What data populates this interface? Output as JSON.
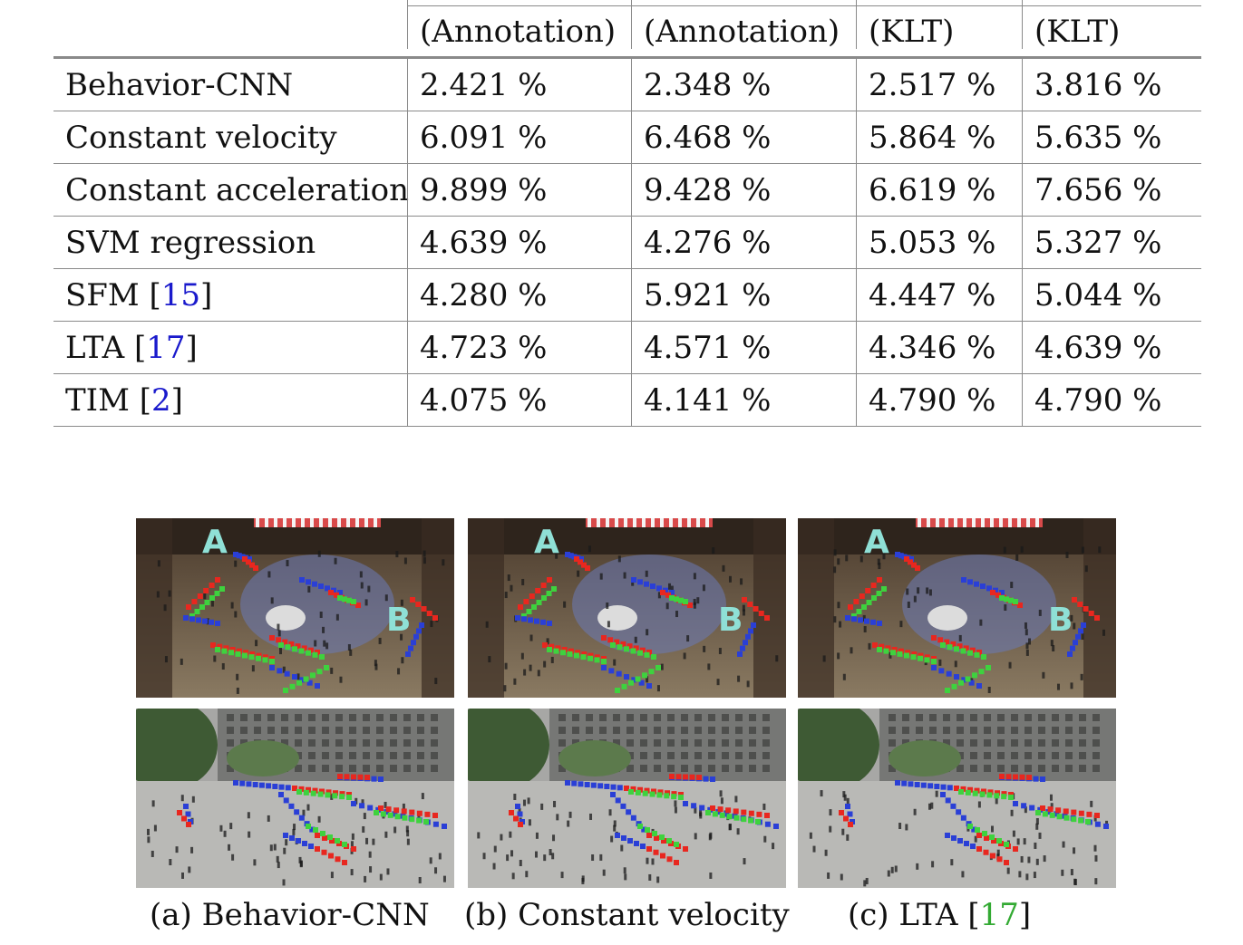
{
  "table": {
    "header": [
      "",
      "(Annotation)",
      "(Annotation)",
      "(KLT)",
      "(KLT)"
    ],
    "rows": [
      {
        "method": "Behavior-CNN",
        "ref": "",
        "values": [
          "2.421 %",
          "2.348 %",
          "2.517 %",
          "3.816 %"
        ]
      },
      {
        "method": "Constant velocity",
        "ref": "",
        "values": [
          "6.091 %",
          "6.468 %",
          "5.864 %",
          "5.635 %"
        ]
      },
      {
        "method": "Constant acceleration",
        "ref": "",
        "values": [
          "9.899 %",
          "9.428 %",
          "6.619 %",
          "7.656 %"
        ]
      },
      {
        "method": "SVM regression",
        "ref": "",
        "values": [
          "4.639 %",
          "4.276 %",
          "5.053 %",
          "5.327 %"
        ]
      },
      {
        "method": "SFM ",
        "ref": "15",
        "values": [
          "4.280 %",
          "5.921 %",
          "4.447 %",
          "5.044 %"
        ]
      },
      {
        "method": "LTA ",
        "ref": "17",
        "values": [
          "4.723 %",
          "4.571 %",
          "4.346 %",
          "4.639 %"
        ]
      },
      {
        "method": "TIM ",
        "ref": "2",
        "values": [
          "4.075 %",
          "4.141 %",
          "4.790 %",
          "4.790 %"
        ]
      }
    ]
  },
  "figure": {
    "markers": {
      "a": "A",
      "b": "B"
    },
    "colors": {
      "prediction": "#e8271f",
      "ground_truth": "#3ed23e",
      "observed": "#2a3fd6",
      "marker": "#8fe0d6"
    },
    "captions": [
      {
        "text": "(a) Behavior-CNN",
        "ref": ""
      },
      {
        "text": "(b) Constant velocity",
        "ref": ""
      },
      {
        "text": "(c) LTA [",
        "ref": "17",
        "close": "]"
      }
    ]
  }
}
